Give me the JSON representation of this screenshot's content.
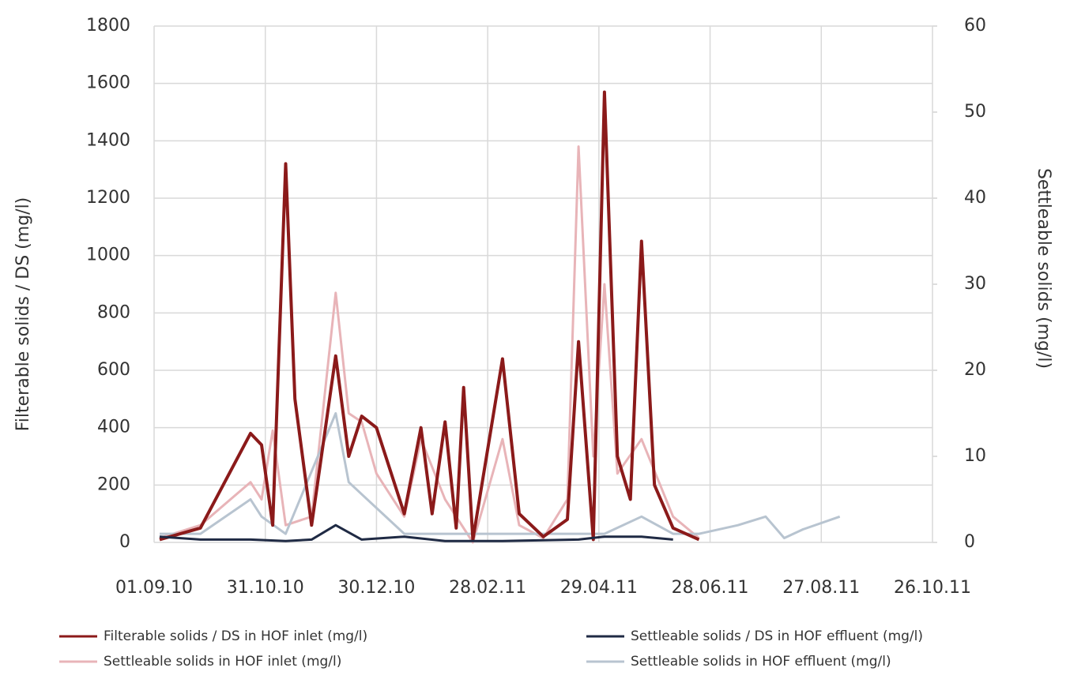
{
  "chart_data": {
    "type": "line",
    "xlim": [
      "01.09.10",
      "26.10.11"
    ],
    "xticks": [
      "01.09.10",
      "31.10.10",
      "30.12.10",
      "28.02.11",
      "29.04.11",
      "28.06.11",
      "27.08.11",
      "26.10.11"
    ],
    "ylim": [
      0,
      1800
    ],
    "yticks": [
      0,
      200,
      400,
      600,
      800,
      1000,
      1200,
      1400,
      1600,
      1800
    ],
    "y2lim": [
      0,
      60
    ],
    "y2ticks": [
      0,
      10,
      20,
      30,
      40,
      50,
      60
    ],
    "ylabel": "Filterable solids / DS (mg/l)",
    "y2label": "Settleable solids (mg/l)",
    "grid": true,
    "series": [
      {
        "name": "Filterable solids / DS in HOF inlet (mg/l)",
        "color": "#8b1a1a",
        "x": [
          "04.09.10",
          "26.09.10",
          "23.10.10",
          "29.10.10",
          "04.11.10",
          "11.11.10",
          "16.11.10",
          "25.11.10",
          "08.12.10",
          "15.12.10",
          "22.12.10",
          "30.12.10",
          "14.01.11",
          "23.01.11",
          "29.01.11",
          "05.02.11",
          "11.02.11",
          "15.02.11",
          "20.02.11",
          "08.03.11",
          "17.03.11",
          "30.03.11",
          "12.04.11",
          "18.04.11",
          "26.04.11",
          "02.05.11",
          "09.05.11",
          "16.05.11",
          "22.05.11",
          "29.05.11",
          "08.06.11",
          "22.06.11"
        ],
        "values": [
          10,
          50,
          380,
          340,
          60,
          1320,
          500,
          60,
          650,
          300,
          440,
          400,
          100,
          400,
          100,
          420,
          50,
          540,
          10,
          640,
          100,
          20,
          80,
          700,
          10,
          1570,
          300,
          150,
          1050,
          200,
          50,
          10
        ]
      },
      {
        "name": "Settleable solids / DS in HOF effluent (mg/l)",
        "color": "#1f2a44",
        "x": [
          "04.09.10",
          "26.09.10",
          "23.10.10",
          "11.11.10",
          "25.11.10",
          "08.12.10",
          "22.12.10",
          "14.01.11",
          "05.02.11",
          "08.03.11",
          "18.04.11",
          "02.05.11",
          "22.05.11",
          "08.06.11"
        ],
        "values": [
          20,
          10,
          10,
          5,
          10,
          60,
          10,
          20,
          5,
          5,
          10,
          20,
          20,
          10
        ]
      },
      {
        "name": "Settleable solids in HOF inlet (mg/l)",
        "color": "#e8b4b8",
        "axis": "y2",
        "x": [
          "04.09.10",
          "26.09.10",
          "23.10.10",
          "29.10.10",
          "04.11.10",
          "11.11.10",
          "25.11.10",
          "08.12.10",
          "15.12.10",
          "22.12.10",
          "30.12.10",
          "14.01.11",
          "23.01.11",
          "05.02.11",
          "20.02.11",
          "08.03.11",
          "17.03.11",
          "30.03.11",
          "12.04.11",
          "18.04.11",
          "26.04.11",
          "02.05.11",
          "09.05.11",
          "22.05.11",
          "08.06.11",
          "22.06.11"
        ],
        "values": [
          0.5,
          2,
          7,
          5,
          13,
          2,
          3,
          29,
          15,
          14,
          8,
          3,
          12,
          5,
          0,
          12,
          2,
          0.5,
          5,
          46,
          10,
          30,
          8,
          12,
          3,
          0.5
        ]
      },
      {
        "name": "Settleable solids in HOF effluent (mg/l)",
        "color": "#b8c4d0",
        "axis": "y2",
        "x": [
          "04.09.10",
          "26.09.10",
          "23.10.10",
          "29.10.10",
          "11.11.10",
          "08.12.10",
          "15.12.10",
          "30.12.10",
          "14.01.11",
          "05.02.11",
          "08.03.11",
          "18.04.11",
          "02.05.11",
          "22.05.11",
          "08.06.11",
          "22.06.11",
          "13.07.11",
          "28.07.11",
          "07.08.11",
          "17.08.11",
          "06.09.11"
        ],
        "values": [
          1,
          1,
          5,
          3,
          1,
          15,
          7,
          4,
          1,
          1,
          1,
          1,
          1,
          3,
          1,
          1,
          2,
          3,
          0.5,
          1.5,
          3
        ]
      }
    ]
  }
}
